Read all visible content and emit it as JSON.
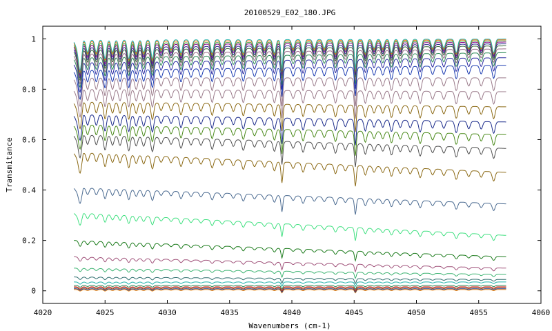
{
  "chart_data": {
    "type": "line",
    "title": "20100529_E02_180.JPG",
    "xlabel": "Wavenumbers (cm-1)",
    "ylabel": "Transmitance",
    "xlim": [
      4020,
      4060
    ],
    "ylim": [
      -0.05,
      1.05
    ],
    "x_ticks": [
      4020,
      4025,
      4030,
      4035,
      4040,
      4045,
      4050,
      4055,
      4060
    ],
    "y_ticks": [
      0,
      0.2,
      0.4,
      0.6,
      0.8,
      1
    ],
    "x_tick_labels": [
      "4020",
      "4025",
      "4030",
      "4035",
      "4040",
      "4045",
      "4050",
      "4055",
      "4060"
    ],
    "y_tick_labels": [
      "0",
      "0.2",
      "0.4",
      "0.6",
      "0.8",
      "1"
    ],
    "grid": false,
    "legend": "none",
    "x_range_data": [
      4022.5,
      4057.2
    ],
    "absorption_lines_cm1": [
      4023.0,
      4023.6,
      4024.3,
      4025.0,
      4025.6,
      4026.2,
      4026.9,
      4027.5,
      4028.1,
      4028.8,
      4029.5,
      4030.3,
      4031.1,
      4031.9,
      4032.7,
      4033.6,
      4034.4,
      4035.3,
      4036.1,
      4037.0,
      4037.8,
      4038.6,
      4039.2,
      4040.1,
      4040.9,
      4041.8,
      4042.6,
      4043.5,
      4044.3,
      4045.1,
      4045.9,
      4046.6,
      4047.3,
      4048.0,
      4048.7,
      4049.5,
      4050.3,
      4051.3,
      4052.2,
      4053.2,
      4054.2,
      4055.2,
      4056.2
    ],
    "series": [
      {
        "baseline_start": 0.005,
        "baseline_end": 0.005,
        "color": "#ff8c00"
      },
      {
        "baseline_start": 0.008,
        "baseline_end": 0.008,
        "color": "#1f3fa0"
      },
      {
        "baseline_start": 0.012,
        "baseline_end": 0.012,
        "color": "#8b4513"
      },
      {
        "baseline_start": 0.016,
        "baseline_end": 0.016,
        "color": "#cc3333"
      },
      {
        "baseline_start": 0.022,
        "baseline_end": 0.022,
        "color": "#2e8b57"
      },
      {
        "baseline_start": 0.035,
        "baseline_end": 0.035,
        "color": "#20b2aa"
      },
      {
        "baseline_start": 0.055,
        "baseline_end": 0.045,
        "color": "#2f6f6f"
      },
      {
        "baseline_start": 0.09,
        "baseline_end": 0.065,
        "color": "#3cb371"
      },
      {
        "baseline_start": 0.135,
        "baseline_end": 0.09,
        "color": "#a0527a"
      },
      {
        "baseline_start": 0.2,
        "baseline_end": 0.135,
        "color": "#1a7a1a"
      },
      {
        "baseline_start": 0.31,
        "baseline_end": 0.22,
        "color": "#40e080"
      },
      {
        "baseline_start": 0.41,
        "baseline_end": 0.345,
        "color": "#4a6a90"
      },
      {
        "baseline_start": 0.55,
        "baseline_end": 0.47,
        "color": "#8b6914"
      },
      {
        "baseline_start": 0.62,
        "baseline_end": 0.565,
        "color": "#505050"
      },
      {
        "baseline_start": 0.66,
        "baseline_end": 0.62,
        "color": "#4a8a1a"
      },
      {
        "baseline_start": 0.7,
        "baseline_end": 0.67,
        "color": "#1a2a8a"
      },
      {
        "baseline_start": 0.75,
        "baseline_end": 0.73,
        "color": "#8b6914"
      },
      {
        "baseline_start": 0.8,
        "baseline_end": 0.79,
        "color": "#9a7a8a"
      },
      {
        "baseline_start": 0.845,
        "baseline_end": 0.845,
        "color": "#9a7a8a"
      },
      {
        "baseline_start": 0.875,
        "baseline_end": 0.895,
        "color": "#1a3ab0"
      },
      {
        "baseline_start": 0.905,
        "baseline_end": 0.925,
        "color": "#2a2aa0"
      },
      {
        "baseline_start": 0.925,
        "baseline_end": 0.945,
        "color": "#2e8b57"
      },
      {
        "baseline_start": 0.94,
        "baseline_end": 0.96,
        "color": "#9a6a8a"
      },
      {
        "baseline_start": 0.955,
        "baseline_end": 0.972,
        "color": "#3a6a3a"
      },
      {
        "baseline_start": 0.965,
        "baseline_end": 0.98,
        "color": "#2a2a8a"
      },
      {
        "baseline_start": 0.975,
        "baseline_end": 0.987,
        "color": "#8b008b"
      },
      {
        "baseline_start": 0.982,
        "baseline_end": 0.992,
        "color": "#40a040"
      },
      {
        "baseline_start": 0.99,
        "baseline_end": 0.996,
        "color": "#ff6600"
      },
      {
        "baseline_start": 0.995,
        "baseline_end": 0.999,
        "color": "#20b2aa"
      }
    ]
  }
}
